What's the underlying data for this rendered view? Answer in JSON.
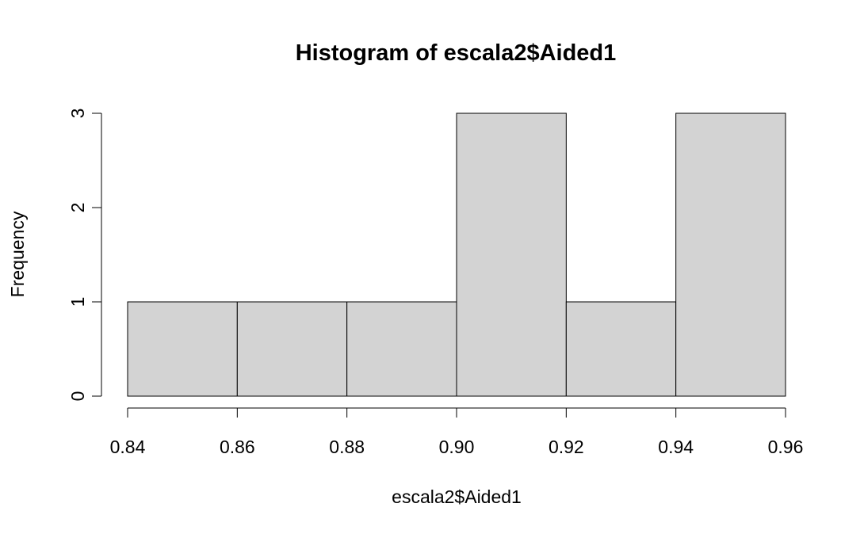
{
  "chart_data": {
    "type": "bar",
    "title": "Histogram of escala2$Aided1",
    "xlabel": "escala2$Aided1",
    "ylabel": "Frequency",
    "bins": [
      {
        "from": 0.84,
        "to": 0.86,
        "count": 1
      },
      {
        "from": 0.86,
        "to": 0.88,
        "count": 1
      },
      {
        "from": 0.88,
        "to": 0.9,
        "count": 1
      },
      {
        "from": 0.9,
        "to": 0.92,
        "count": 3
      },
      {
        "from": 0.92,
        "to": 0.94,
        "count": 1
      },
      {
        "from": 0.94,
        "to": 0.96,
        "count": 3
      }
    ],
    "xlim": [
      0.84,
      0.96
    ],
    "ylim": [
      0,
      3
    ],
    "x_ticks": [
      "0.84",
      "0.86",
      "0.88",
      "0.90",
      "0.92",
      "0.94",
      "0.96"
    ],
    "y_ticks": [
      "0",
      "1",
      "2",
      "3"
    ],
    "colors": {
      "bar_fill": "#d3d3d3",
      "bar_stroke": "#000000"
    },
    "grid": false
  }
}
